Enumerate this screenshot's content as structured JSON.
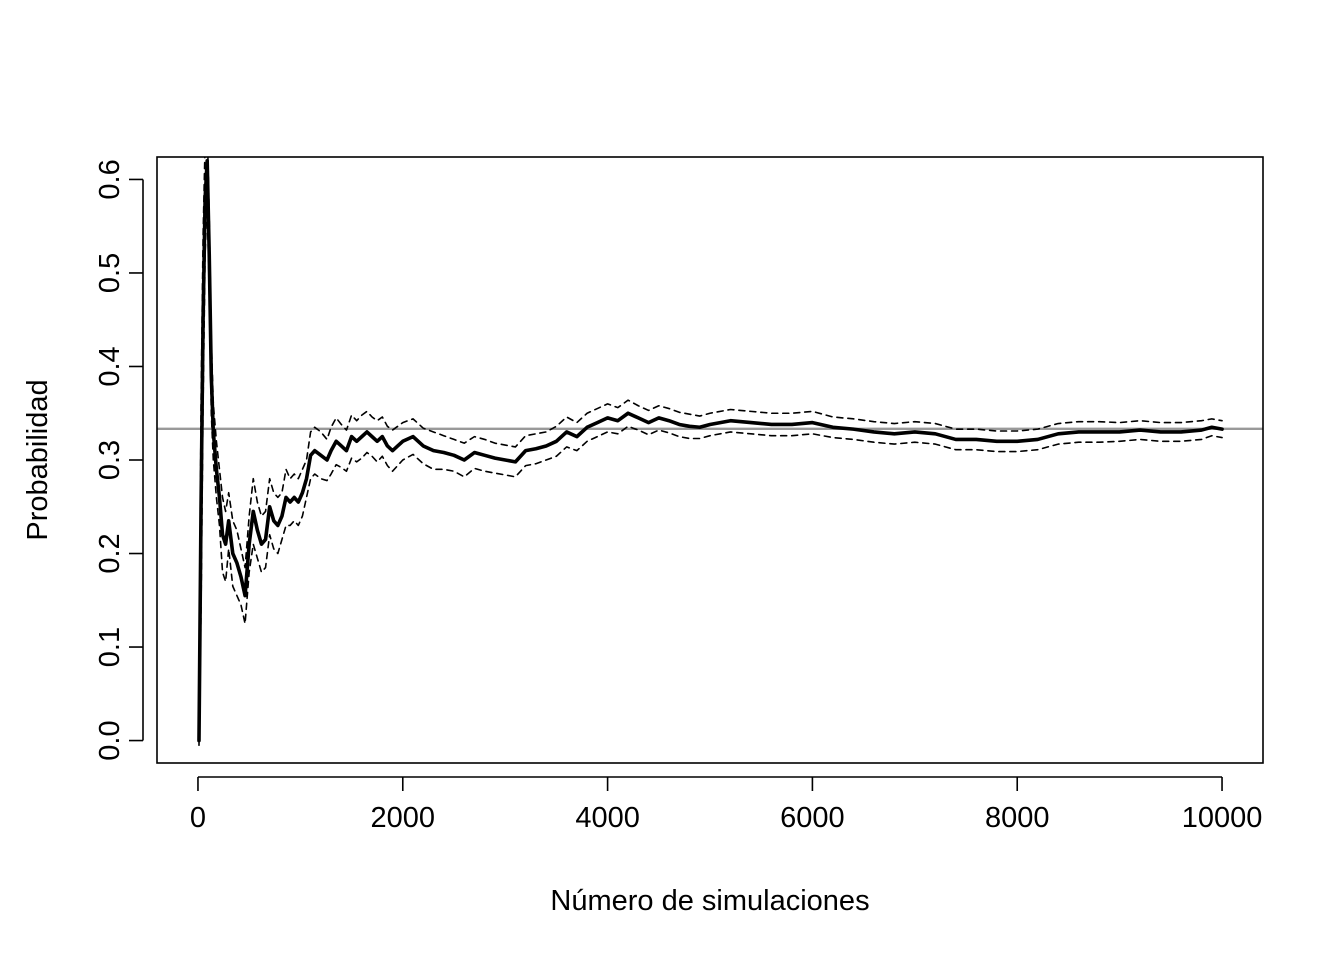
{
  "chart_data": {
    "type": "line",
    "title": "",
    "xlabel": "Número de simulaciones",
    "ylabel": "Probabilidad",
    "xlim": [
      -400,
      10400
    ],
    "ylim": [
      -0.024,
      0.624
    ],
    "x_ticks": [
      0,
      2000,
      4000,
      6000,
      8000,
      10000
    ],
    "x_tick_labels": [
      "0",
      "2000",
      "4000",
      "6000",
      "8000",
      "10000"
    ],
    "y_ticks": [
      0.0,
      0.1,
      0.2,
      0.3,
      0.4,
      0.5,
      0.6
    ],
    "y_tick_labels": [
      "0.0",
      "0.1",
      "0.2",
      "0.3",
      "0.4",
      "0.5",
      "0.6"
    ],
    "grid": false,
    "legend": "none",
    "reference_line": {
      "y": 0.3333,
      "color": "#999999"
    },
    "colors": {
      "estimate": "#000000",
      "bounds": "#000000",
      "reference": "#999999"
    },
    "series": [
      {
        "style": "solid-thick",
        "x": [
          10,
          30,
          50,
          70,
          90,
          110,
          130,
          150,
          180,
          210,
          240,
          270,
          300,
          340,
          380,
          420,
          460,
          500,
          540,
          580,
          620,
          660,
          700,
          740,
          780,
          820,
          860,
          900,
          940,
          980,
          1020,
          1060,
          1100,
          1140,
          1200,
          1260,
          1300,
          1350,
          1400,
          1450,
          1500,
          1550,
          1600,
          1650,
          1700,
          1750,
          1800,
          1850,
          1900,
          1950,
          2000,
          2100,
          2200,
          2300,
          2400,
          2500,
          2600,
          2700,
          2800,
          2900,
          3000,
          3100,
          3200,
          3300,
          3400,
          3500,
          3600,
          3700,
          3800,
          3900,
          4000,
          4100,
          4200,
          4300,
          4400,
          4500,
          4600,
          4700,
          4800,
          4900,
          5000,
          5200,
          5400,
          5600,
          5800,
          6000,
          6200,
          6400,
          6600,
          6800,
          7000,
          7200,
          7400,
          7600,
          7800,
          8000,
          8200,
          8400,
          8600,
          8800,
          9000,
          9200,
          9400,
          9600,
          9800,
          9900,
          10000
        ],
        "values": [
          0.0,
          0.25,
          0.45,
          0.58,
          0.62,
          0.52,
          0.39,
          0.33,
          0.29,
          0.26,
          0.22,
          0.21,
          0.235,
          0.2,
          0.19,
          0.175,
          0.155,
          0.21,
          0.245,
          0.225,
          0.21,
          0.215,
          0.25,
          0.235,
          0.23,
          0.24,
          0.26,
          0.255,
          0.26,
          0.255,
          0.265,
          0.28,
          0.305,
          0.31,
          0.305,
          0.3,
          0.31,
          0.32,
          0.315,
          0.31,
          0.325,
          0.32,
          0.325,
          0.33,
          0.325,
          0.32,
          0.325,
          0.315,
          0.31,
          0.315,
          0.32,
          0.325,
          0.315,
          0.31,
          0.308,
          0.305,
          0.3,
          0.308,
          0.305,
          0.302,
          0.3,
          0.298,
          0.31,
          0.312,
          0.315,
          0.32,
          0.33,
          0.325,
          0.335,
          0.34,
          0.345,
          0.342,
          0.35,
          0.345,
          0.34,
          0.345,
          0.342,
          0.338,
          0.336,
          0.335,
          0.338,
          0.342,
          0.34,
          0.338,
          0.338,
          0.34,
          0.335,
          0.333,
          0.33,
          0.328,
          0.33,
          0.328,
          0.322,
          0.322,
          0.32,
          0.32,
          0.322,
          0.328,
          0.33,
          0.33,
          0.33,
          0.332,
          0.33,
          0.33,
          0.332,
          0.335,
          0.333
        ]
      },
      {
        "style": "dashed",
        "x": [
          10,
          30,
          50,
          70,
          90,
          110,
          130,
          150,
          180,
          210,
          240,
          270,
          300,
          340,
          380,
          420,
          460,
          500,
          540,
          580,
          620,
          660,
          700,
          740,
          780,
          820,
          860,
          900,
          940,
          980,
          1020,
          1060,
          1100,
          1140,
          1200,
          1260,
          1300,
          1350,
          1400,
          1450,
          1500,
          1550,
          1600,
          1650,
          1700,
          1750,
          1800,
          1850,
          1900,
          1950,
          2000,
          2100,
          2200,
          2300,
          2400,
          2500,
          2600,
          2700,
          2800,
          2900,
          3000,
          3100,
          3200,
          3300,
          3400,
          3500,
          3600,
          3700,
          3800,
          3900,
          4000,
          4100,
          4200,
          4300,
          4400,
          4500,
          4600,
          4700,
          4800,
          4900,
          5000,
          5200,
          5400,
          5600,
          5800,
          6000,
          6200,
          6400,
          6600,
          6800,
          7000,
          7200,
          7400,
          7600,
          7800,
          8000,
          8200,
          8400,
          8600,
          8800,
          9000,
          9200,
          9400,
          9600,
          9800,
          9900,
          10000
        ],
        "values": [
          0.0,
          0.36,
          0.54,
          0.64,
          0.66,
          0.56,
          0.43,
          0.36,
          0.32,
          0.29,
          0.26,
          0.245,
          0.265,
          0.235,
          0.225,
          0.205,
          0.185,
          0.24,
          0.28,
          0.255,
          0.24,
          0.245,
          0.28,
          0.265,
          0.26,
          0.265,
          0.29,
          0.28,
          0.285,
          0.28,
          0.29,
          0.3,
          0.33,
          0.335,
          0.33,
          0.322,
          0.335,
          0.345,
          0.338,
          0.332,
          0.348,
          0.342,
          0.348,
          0.352,
          0.346,
          0.342,
          0.346,
          0.336,
          0.332,
          0.336,
          0.34,
          0.344,
          0.334,
          0.33,
          0.326,
          0.322,
          0.318,
          0.325,
          0.322,
          0.318,
          0.316,
          0.314,
          0.326,
          0.328,
          0.33,
          0.336,
          0.346,
          0.34,
          0.35,
          0.355,
          0.36,
          0.356,
          0.364,
          0.358,
          0.353,
          0.358,
          0.355,
          0.351,
          0.349,
          0.347,
          0.35,
          0.354,
          0.352,
          0.35,
          0.35,
          0.352,
          0.346,
          0.344,
          0.341,
          0.339,
          0.341,
          0.339,
          0.333,
          0.333,
          0.331,
          0.331,
          0.333,
          0.339,
          0.341,
          0.341,
          0.34,
          0.342,
          0.34,
          0.34,
          0.342,
          0.344,
          0.342
        ]
      },
      {
        "style": "dashed",
        "x": [
          10,
          30,
          50,
          70,
          90,
          110,
          130,
          150,
          180,
          210,
          240,
          270,
          300,
          340,
          380,
          420,
          460,
          500,
          540,
          580,
          620,
          660,
          700,
          740,
          780,
          820,
          860,
          900,
          940,
          980,
          1020,
          1060,
          1100,
          1140,
          1200,
          1260,
          1300,
          1350,
          1400,
          1450,
          1500,
          1550,
          1600,
          1650,
          1700,
          1750,
          1800,
          1850,
          1900,
          1950,
          2000,
          2100,
          2200,
          2300,
          2400,
          2500,
          2600,
          2700,
          2800,
          2900,
          3000,
          3100,
          3200,
          3300,
          3400,
          3500,
          3600,
          3700,
          3800,
          3900,
          4000,
          4100,
          4200,
          4300,
          4400,
          4500,
          4600,
          4700,
          4800,
          4900,
          5000,
          5200,
          5400,
          5600,
          5800,
          6000,
          6200,
          6400,
          6600,
          6800,
          7000,
          7200,
          7400,
          7600,
          7800,
          8000,
          8200,
          8400,
          8600,
          8800,
          9000,
          9200,
          9400,
          9600,
          9800,
          9900,
          10000
        ],
        "values": [
          -0.005,
          0.14,
          0.36,
          0.52,
          0.58,
          0.48,
          0.35,
          0.3,
          0.26,
          0.23,
          0.18,
          0.17,
          0.205,
          0.165,
          0.155,
          0.145,
          0.125,
          0.18,
          0.21,
          0.195,
          0.18,
          0.185,
          0.22,
          0.205,
          0.2,
          0.215,
          0.23,
          0.23,
          0.235,
          0.23,
          0.24,
          0.26,
          0.28,
          0.285,
          0.28,
          0.278,
          0.285,
          0.295,
          0.292,
          0.288,
          0.302,
          0.298,
          0.302,
          0.308,
          0.304,
          0.298,
          0.304,
          0.294,
          0.288,
          0.294,
          0.3,
          0.306,
          0.296,
          0.29,
          0.29,
          0.288,
          0.282,
          0.291,
          0.288,
          0.286,
          0.284,
          0.282,
          0.294,
          0.296,
          0.3,
          0.304,
          0.314,
          0.31,
          0.32,
          0.325,
          0.33,
          0.328,
          0.336,
          0.332,
          0.327,
          0.332,
          0.329,
          0.325,
          0.323,
          0.323,
          0.326,
          0.33,
          0.328,
          0.326,
          0.326,
          0.328,
          0.324,
          0.322,
          0.319,
          0.317,
          0.319,
          0.317,
          0.311,
          0.311,
          0.309,
          0.309,
          0.311,
          0.317,
          0.319,
          0.319,
          0.32,
          0.322,
          0.32,
          0.32,
          0.322,
          0.326,
          0.324
        ]
      }
    ]
  }
}
